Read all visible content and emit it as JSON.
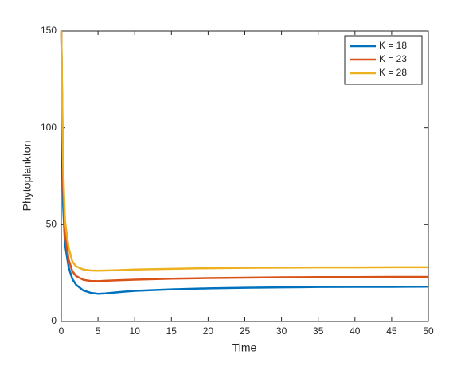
{
  "chart_data": {
    "type": "line",
    "x_label": "Time",
    "y_label": "Phytoplankton",
    "x": [
      0,
      0.25,
      0.5,
      1,
      1.5,
      2,
      3,
      4,
      5,
      6,
      8,
      10,
      15,
      20,
      25,
      30,
      35,
      40,
      45,
      50
    ],
    "series": [
      {
        "name": "K = 18",
        "color": "#0072bd",
        "values": [
          150,
          60,
          40,
          28,
          22,
          19,
          16,
          14.8,
          14.3,
          14.5,
          15.2,
          15.8,
          16.6,
          17.1,
          17.4,
          17.6,
          17.8,
          17.9,
          17.9,
          18
        ]
      },
      {
        "name": "K = 23",
        "color": "#d95319",
        "values": [
          150,
          70,
          45,
          32,
          26,
          23.5,
          21.5,
          20.9,
          20.8,
          21,
          21.3,
          21.6,
          22.1,
          22.4,
          22.6,
          22.8,
          22.9,
          22.9,
          23,
          23
        ]
      },
      {
        "name": "K = 28",
        "color": "#edb120",
        "values": [
          150,
          80,
          52,
          38,
          31,
          28.5,
          26.8,
          26.3,
          26.2,
          26.3,
          26.5,
          26.8,
          27.2,
          27.5,
          27.7,
          27.8,
          27.9,
          27.9,
          28,
          28
        ]
      }
    ],
    "xlim": [
      0,
      50
    ],
    "xticks": [
      0,
      5,
      10,
      15,
      20,
      25,
      30,
      35,
      40,
      45,
      50
    ],
    "ylim": [
      0,
      150
    ],
    "yticks": [
      0,
      50,
      100,
      150
    ],
    "legend": "top-right"
  }
}
